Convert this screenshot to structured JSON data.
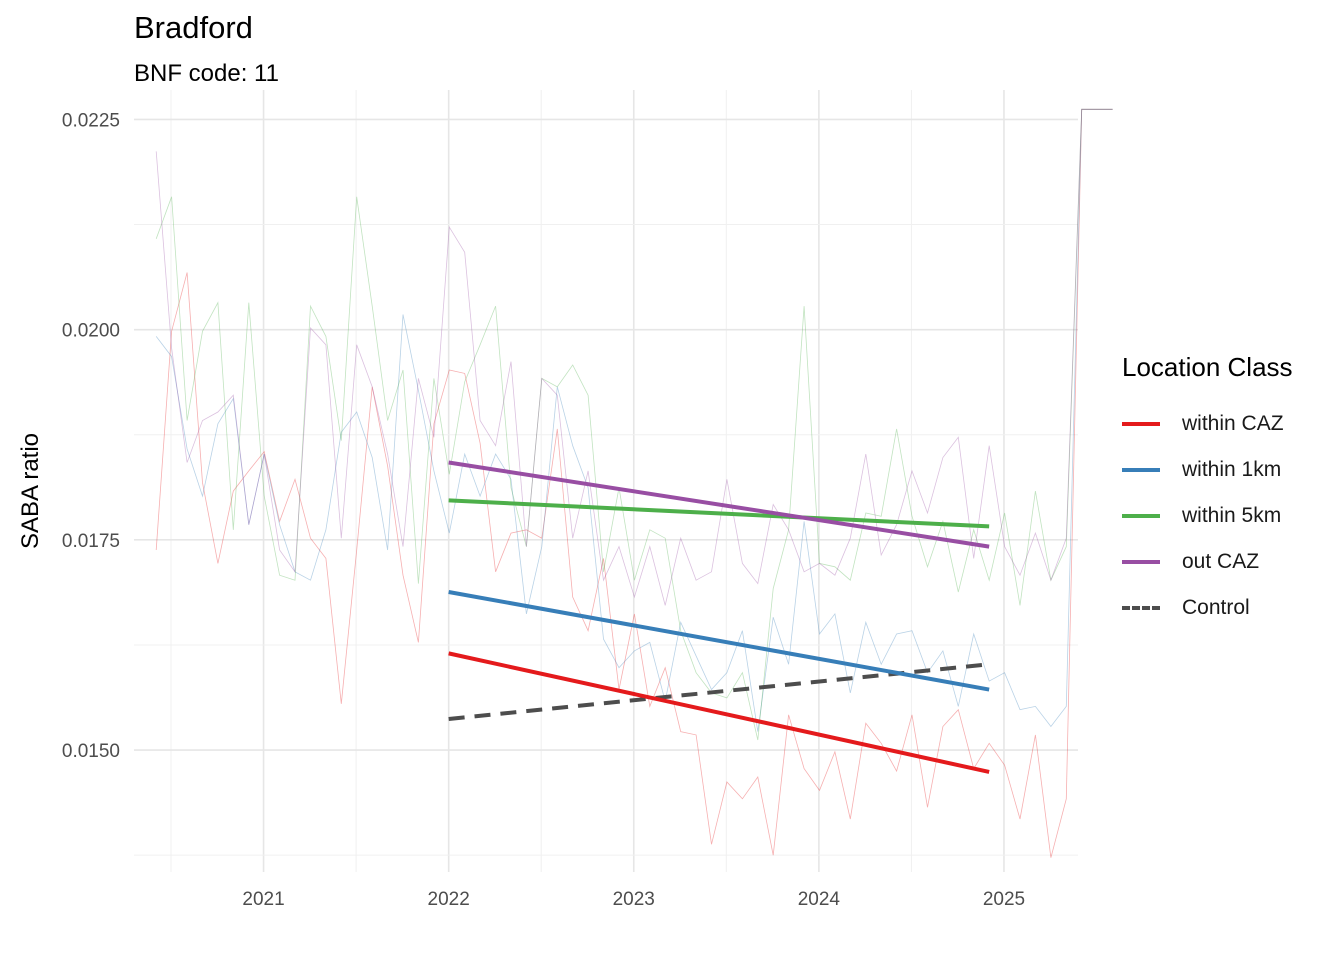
{
  "chart_data": {
    "type": "line",
    "title": "Bradford",
    "subtitle": "BNF code: 11",
    "xlabel": "",
    "ylabel": "SABA ratio",
    "x_ticks": [
      "2021",
      "2022",
      "2023",
      "2024",
      "2025"
    ],
    "y_ticks": [
      "0.0150",
      "0.0175",
      "0.0200",
      "0.0225"
    ],
    "xlim": [
      2020.3,
      2025.4
    ],
    "ylim": [
      0.01355,
      0.02285
    ],
    "grid": true,
    "legend_position": "right",
    "legend": {
      "title": "Location Class",
      "entries": [
        {
          "name": "within CAZ",
          "color": "#e41a1c",
          "dash": "solid"
        },
        {
          "name": "within 1km",
          "color": "#377eb8",
          "dash": "solid"
        },
        {
          "name": "within 5km",
          "color": "#4daf4a",
          "dash": "solid"
        },
        {
          "name": "out CAZ",
          "color": "#984ea3",
          "dash": "solid"
        },
        {
          "name": "Control",
          "color": "#4d4d4d",
          "dash": "dashed"
        }
      ]
    },
    "trend_lines": [
      {
        "name": "within CAZ",
        "x": [
          2022.0,
          2024.92
        ],
        "y": [
          0.01615,
          0.01474
        ]
      },
      {
        "name": "within 1km",
        "x": [
          2022.0,
          2024.92
        ],
        "y": [
          0.01688,
          0.01572
        ]
      },
      {
        "name": "within 5km",
        "x": [
          2022.0,
          2024.92
        ],
        "y": [
          0.01797,
          0.01766
        ]
      },
      {
        "name": "out CAZ",
        "x": [
          2022.0,
          2024.92
        ],
        "y": [
          0.01842,
          0.01742
        ]
      },
      {
        "name": "Control",
        "x": [
          2022.0,
          2024.92
        ],
        "y": [
          0.01537,
          0.01602
        ]
      }
    ],
    "series": [
      {
        "name": "within CAZ",
        "x_start": 2020.42,
        "x_step": 0.0833333,
        "values": [
          0.01738,
          0.01998,
          0.02068,
          0.01818,
          0.01722,
          0.01808,
          0.01832,
          0.01855,
          0.01772,
          0.01822,
          0.01752,
          0.01728,
          0.01555,
          0.01738,
          0.01932,
          0.01838,
          0.01708,
          0.01628,
          0.01888,
          0.01952,
          0.01948,
          0.01865,
          0.01712,
          0.01758,
          0.01762,
          0.01752,
          0.01882,
          0.01682,
          0.01642,
          0.01728,
          0.01572,
          0.01662,
          0.01552,
          0.01598,
          0.01522,
          0.01518,
          0.01388,
          0.01462,
          0.01442,
          0.01468,
          0.01375,
          0.01542,
          0.01478,
          0.01452,
          0.01498,
          0.01418,
          0.01532,
          0.01508,
          0.01475,
          0.01542,
          0.01432,
          0.01528,
          0.01548,
          0.01478,
          0.01508,
          0.01482,
          0.01418,
          0.01518,
          0.01372,
          0.01442,
          0.02262,
          0.02262,
          0.02262
        ]
      },
      {
        "name": "within 1km",
        "x_start": 2020.42,
        "x_step": 0.0833333,
        "values": [
          0.01992,
          0.01968,
          0.01858,
          0.01802,
          0.01888,
          0.01918,
          0.01768,
          0.01852,
          0.01768,
          0.01712,
          0.01702,
          0.01762,
          0.01878,
          0.01902,
          0.01848,
          0.01738,
          0.02018,
          0.01928,
          0.01832,
          0.01758,
          0.01852,
          0.01802,
          0.01852,
          0.01822,
          0.01662,
          0.01742,
          0.01932,
          0.01862,
          0.01812,
          0.01632,
          0.01598,
          0.01618,
          0.01628,
          0.01558,
          0.01652,
          0.01612,
          0.01572,
          0.01592,
          0.01642,
          0.01522,
          0.01658,
          0.01602,
          0.01772,
          0.01638,
          0.01662,
          0.01568,
          0.01652,
          0.01602,
          0.01638,
          0.01642,
          0.01592,
          0.01618,
          0.01552,
          0.01638,
          0.01582,
          0.01592,
          0.01548,
          0.01552,
          0.01528,
          0.01552,
          0.02262,
          0.02262,
          0.02262
        ]
      },
      {
        "name": "within 5km",
        "x_start": 2020.42,
        "x_step": 0.0833333,
        "values": [
          0.02108,
          0.02158,
          0.01892,
          0.01998,
          0.02032,
          0.01762,
          0.02032,
          0.01802,
          0.01708,
          0.01702,
          0.02028,
          0.01992,
          0.01868,
          0.02158,
          0.02028,
          0.01892,
          0.01952,
          0.01698,
          0.01942,
          0.01828,
          0.01938,
          0.01982,
          0.02028,
          0.01812,
          0.01742,
          0.01942,
          0.01932,
          0.01958,
          0.01922,
          0.01712,
          0.01812,
          0.01702,
          0.01762,
          0.01752,
          0.01642,
          0.01592,
          0.01568,
          0.01562,
          0.01592,
          0.01512,
          0.01692,
          0.01762,
          0.02028,
          0.01722,
          0.01718,
          0.01702,
          0.01782,
          0.01778,
          0.01882,
          0.01778,
          0.01718,
          0.01772,
          0.01688,
          0.01762,
          0.01702,
          0.01782,
          0.01672,
          0.01808,
          0.01702,
          0.01742,
          0.02262,
          0.02262,
          0.02262
        ]
      },
      {
        "name": "out CAZ",
        "x_start": 2020.42,
        "x_step": 0.0833333,
        "values": [
          0.02212,
          0.01978,
          0.01842,
          0.01892,
          0.01902,
          0.01922,
          0.01768,
          0.01852,
          0.01738,
          0.01712,
          0.02002,
          0.01982,
          0.01752,
          0.01982,
          0.01932,
          0.01852,
          0.01742,
          0.01942,
          0.01872,
          0.02122,
          0.02092,
          0.01892,
          0.01862,
          0.01962,
          0.01742,
          0.01942,
          0.01922,
          0.01752,
          0.01832,
          0.01702,
          0.01742,
          0.01682,
          0.01742,
          0.01672,
          0.01752,
          0.01702,
          0.01712,
          0.01822,
          0.01722,
          0.01698,
          0.01792,
          0.01762,
          0.01712,
          0.01722,
          0.01708,
          0.01752,
          0.01852,
          0.01732,
          0.01768,
          0.01832,
          0.01782,
          0.01848,
          0.01872,
          0.01728,
          0.01862,
          0.01742,
          0.01708,
          0.01758,
          0.01702,
          0.01752,
          0.02262,
          0.02262,
          0.02262
        ]
      }
    ]
  }
}
